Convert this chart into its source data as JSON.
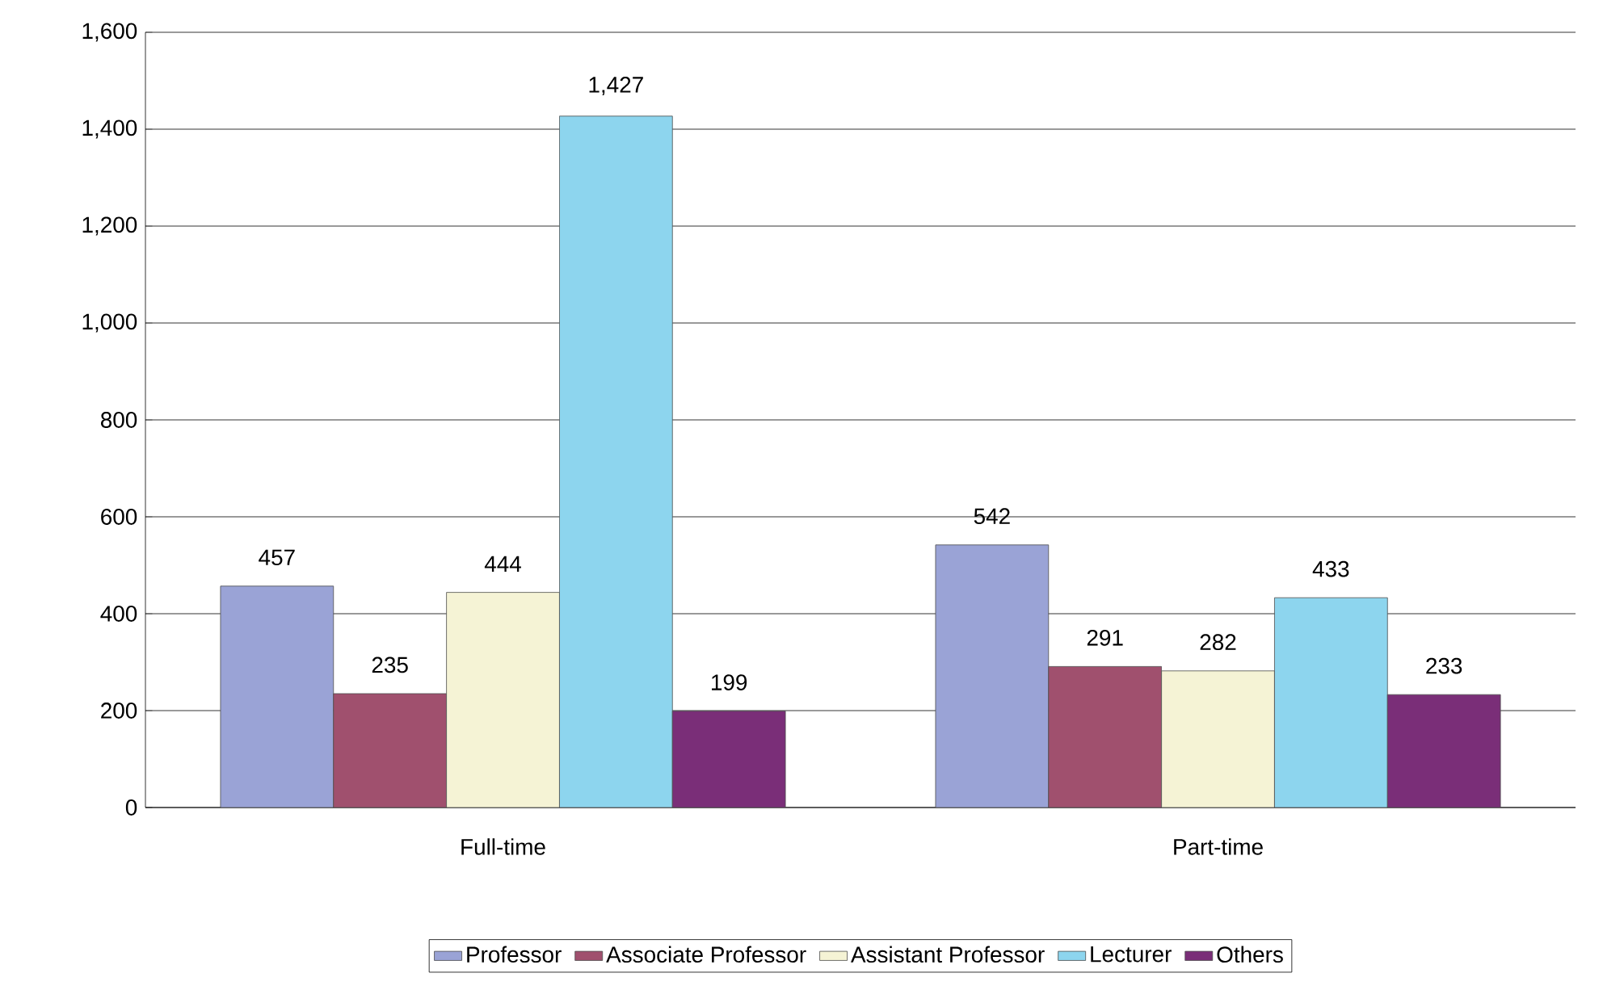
{
  "chart_data": {
    "type": "bar",
    "categories": [
      "Full-time",
      "Part-time"
    ],
    "series": [
      {
        "name": "Professor",
        "color": "#9aa3d6",
        "values": [
          457,
          542
        ],
        "value_labels": [
          "457",
          "542"
        ]
      },
      {
        "name": "Associate Professor",
        "color": "#a0506e",
        "values": [
          235,
          291
        ],
        "value_labels": [
          "235",
          "291"
        ]
      },
      {
        "name": "Assistant Professor",
        "color": "#f5f3d5",
        "values": [
          444,
          282
        ],
        "value_labels": [
          "444",
          "282"
        ]
      },
      {
        "name": "Lecturer",
        "color": "#8dd5ee",
        "values": [
          1427,
          433
        ],
        "value_labels": [
          "1,427",
          "433"
        ]
      },
      {
        "name": "Others",
        "color": "#7a2e78",
        "values": [
          199,
          233
        ],
        "value_labels": [
          "199",
          "233"
        ]
      }
    ],
    "ylim": [
      0,
      1600
    ],
    "yticks": [
      0,
      {
        "value": 200,
        "label": "200"
      },
      {
        "value": 400,
        "label": "400"
      },
      {
        "value": 600,
        "label": "600"
      },
      {
        "value": 800,
        "label": "800"
      },
      {
        "value": 1000,
        "label": "1,000"
      },
      {
        "value": 1200,
        "label": "1,200"
      },
      {
        "value": 1400,
        "label": "1,400"
      },
      {
        "value": 1600,
        "label": "1,600"
      }
    ],
    "grid": "y",
    "legend": "bottom"
  }
}
